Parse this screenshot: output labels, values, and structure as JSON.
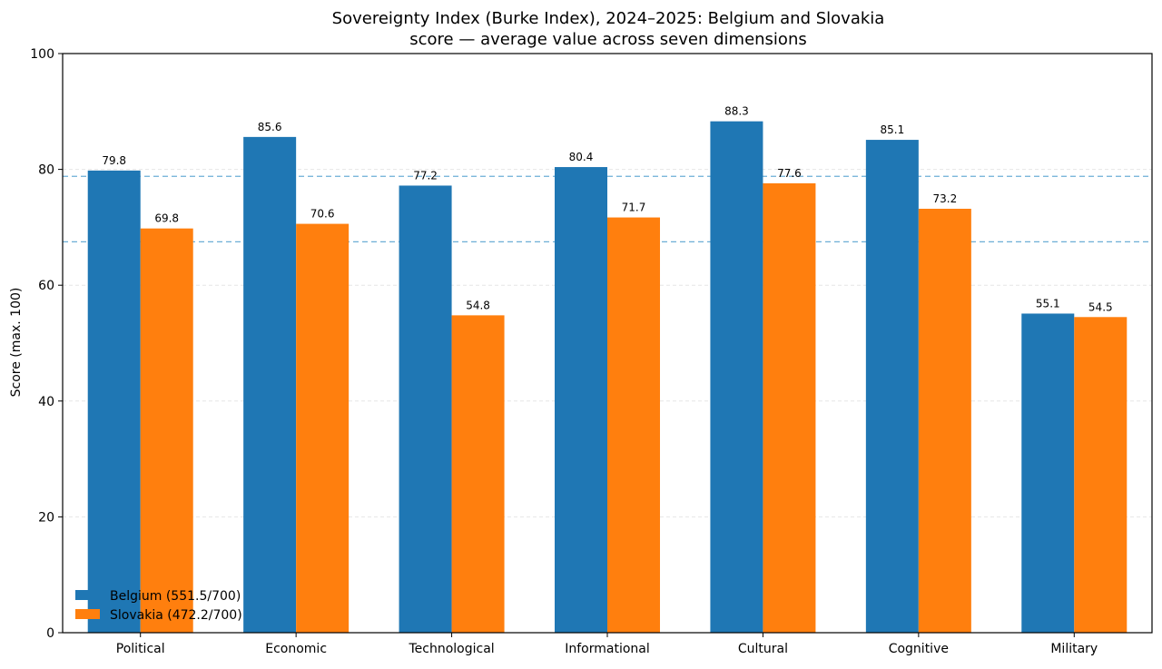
{
  "chart_data": {
    "type": "bar",
    "title": "Sovereignty Index (Burke Index), 2024–2025: Belgium and Slovakia",
    "subtitle": "score — average value across seven dimensions",
    "xlabel": "",
    "ylabel": "Score (max. 100)",
    "ylim": [
      0,
      100
    ],
    "yticks": [
      0,
      20,
      40,
      60,
      80,
      100
    ],
    "categories": [
      "Political",
      "Economic",
      "Technological",
      "Informational",
      "Cultural",
      "Cognitive",
      "Military"
    ],
    "series": [
      {
        "name": "Belgium (551.5/700)",
        "color": "#1f77b4",
        "values": [
          79.8,
          85.6,
          77.2,
          80.4,
          88.3,
          85.1,
          55.1
        ],
        "labels": [
          "79.8",
          "85.6",
          "77.2",
          "80.4",
          "88.3",
          "85.1",
          "55.1"
        ]
      },
      {
        "name": "Slovakia (472.2/700)",
        "color": "#ff7f0e",
        "values": [
          69.8,
          70.6,
          54.8,
          71.7,
          77.6,
          73.2,
          54.5
        ],
        "labels": [
          "69.8",
          "70.6",
          "54.8",
          "71.7",
          "77.6",
          "73.2",
          "54.5"
        ]
      }
    ],
    "reference_lines": [
      {
        "value": 78.8,
        "color": "#6baed6",
        "style": "dashed"
      },
      {
        "value": 67.5,
        "color": "#6baed6",
        "style": "dashed"
      }
    ],
    "grid": "y",
    "legend_position": "lower-left"
  }
}
